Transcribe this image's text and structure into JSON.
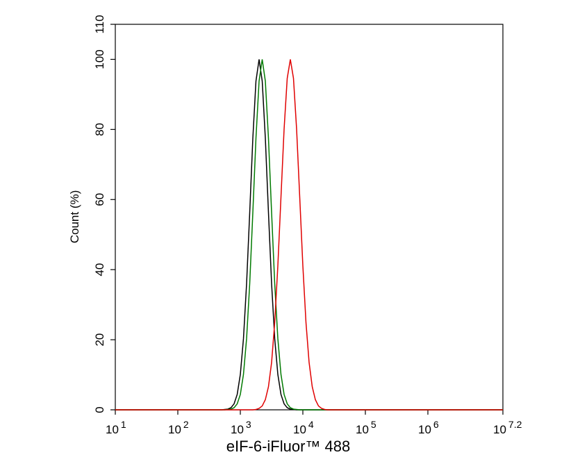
{
  "chart_data": {
    "type": "line",
    "xlabel": "eIF-6-iFluor™ 488",
    "ylabel": "Count  (%)",
    "xscale": "log",
    "xlim": [
      10,
      15848932
    ],
    "xticks": [
      {
        "value": 10,
        "label": "10",
        "sup": "1"
      },
      {
        "value": 100,
        "label": "10",
        "sup": "2"
      },
      {
        "value": 1000,
        "label": "10",
        "sup": "3"
      },
      {
        "value": 10000,
        "label": "10",
        "sup": "4"
      },
      {
        "value": 100000,
        "label": "10",
        "sup": "5"
      },
      {
        "value": 1000000,
        "label": "10",
        "sup": "6"
      },
      {
        "value": 15848932,
        "label": "10",
        "sup": "7.2"
      }
    ],
    "ylim": [
      0,
      110
    ],
    "yticks": [
      0,
      20,
      40,
      60,
      80,
      100,
      110
    ],
    "x": [
      10,
      501,
      562,
      631,
      708,
      794,
      891,
      1000,
      1122,
      1259,
      1413,
      1585,
      1778,
      1995,
      2239,
      2512,
      2818,
      3162,
      3548,
      3981,
      4467,
      5012,
      5623,
      6310,
      7079,
      7943,
      8913,
      10000,
      11220,
      12589,
      14125,
      15849,
      17783,
      19953,
      22387,
      25119,
      15848932
    ],
    "series": [
      {
        "color": "#000000",
        "values": [
          0,
          0,
          0.1,
          0.2,
          0.6,
          1.7,
          4.4,
          10.1,
          20.3,
          36.0,
          56.3,
          77.5,
          93.8,
          100,
          93.8,
          77.5,
          56.3,
          36.0,
          20.3,
          10.1,
          4.4,
          1.7,
          0.6,
          0.2,
          0.1,
          0,
          0,
          0,
          0,
          0,
          0,
          0,
          0,
          0,
          0,
          0,
          0
        ]
      },
      {
        "color": "#007a00",
        "values": [
          0,
          0,
          0,
          0.1,
          0.2,
          0.6,
          1.7,
          4.4,
          10.1,
          20.3,
          36.0,
          56.3,
          77.5,
          93.8,
          100,
          93.8,
          77.5,
          56.3,
          36.0,
          20.3,
          10.1,
          4.4,
          1.7,
          0.6,
          0.2,
          0.1,
          0,
          0,
          0,
          0,
          0,
          0,
          0,
          0,
          0,
          0,
          0
        ]
      },
      {
        "color": "#e00000",
        "values": [
          0,
          0,
          0,
          0,
          0,
          0,
          0,
          0,
          0,
          0,
          0,
          0,
          0.1,
          0.4,
          1.1,
          2.9,
          6.6,
          13.5,
          24.9,
          41.1,
          60.7,
          80.1,
          94.6,
          100,
          94.6,
          80.1,
          60.7,
          41.1,
          24.9,
          13.5,
          6.6,
          2.9,
          1.1,
          0.4,
          0.1,
          0,
          0
        ]
      }
    ]
  }
}
